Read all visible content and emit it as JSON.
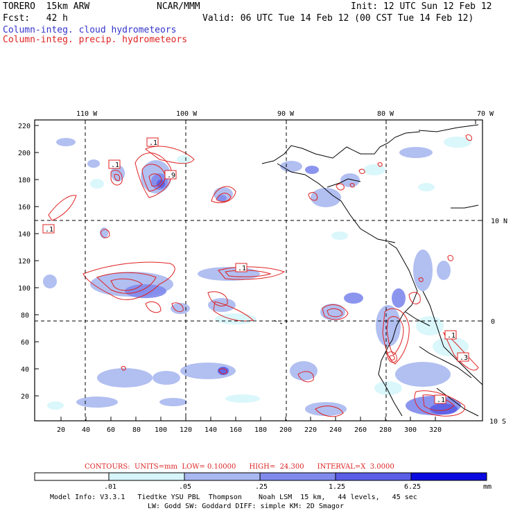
{
  "header": {
    "model": "TORERO  15km ARW",
    "center": "NCAR/MMM",
    "init": "Init: 12 UTC Sun 12 Feb 12",
    "fcst": "Fcst:   42 h",
    "valid": "Valid: 06 UTC Tue 14 Feb 12 (00 CST Tue 14 Feb 12)",
    "field1": "Column-integ. cloud hydrometeors",
    "field2": "Column-integ. precip. hydrometeors"
  },
  "colors": {
    "field1": "#3333cc",
    "field2": "#dd2222",
    "contour": "#e02020",
    "cb1": "#ffffff",
    "cb2": "#d6f6fb",
    "cb3": "#a8b8f0",
    "cb4": "#7f8aec",
    "cb5": "#5a5ee6",
    "cb6": "#3232e0",
    "cb7": "#0a0ae0"
  },
  "map": {
    "lon_labels": [
      "110 W",
      "100 W",
      "90 W",
      "80 W",
      "70 W"
    ],
    "lat_labels": [
      "10 N",
      "0",
      "10 S"
    ],
    "y_ticks": [
      "220",
      "200",
      "180",
      "160",
      "140",
      "120",
      "100",
      "80",
      "60",
      "40",
      "20"
    ],
    "x_ticks": [
      "20",
      "40",
      "60",
      "80",
      "100",
      "120",
      "140",
      "160",
      "180",
      "200",
      "220",
      "240",
      "260",
      "280",
      "300",
      "320"
    ],
    "contour_labels": [
      ".1",
      ".1",
      ".9",
      ".1",
      ".1",
      ".1",
      ".1",
      ".3",
      ".1"
    ]
  },
  "legend": {
    "contours": "CONTOURS:  UNITS=mm  LOW= 0.10000      HIGH=  24.300      INTERVAL=X  3.0000",
    "bins": [
      ".01",
      ".05",
      ".25",
      "1.25",
      "6.25"
    ],
    "units": "mm"
  },
  "footer": {
    "line1": "Model Info: V3.3.1   Tiedtke YSU PBL  Thompson    Noah LSM  15 km,   44 levels,   45 sec",
    "line2": "LW: Godd SW: Goddard DIFF: simple KM: 2D Smagor"
  }
}
